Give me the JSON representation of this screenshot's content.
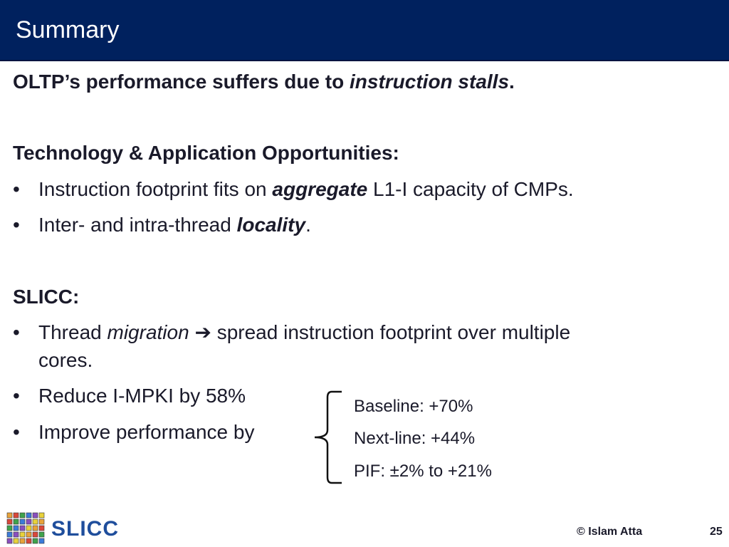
{
  "header": {
    "title": "Summary"
  },
  "intro": {
    "text_before": "OLTP’s performance suffers due to ",
    "emphasis": "instruction stalls",
    "text_after": "."
  },
  "tech_section": {
    "heading": "Technology & Application Opportunities:",
    "bullets": [
      {
        "before": "Instruction footprint fits on ",
        "emphasis": "aggregate",
        "after": " L1-I capacity of CMPs."
      },
      {
        "before": "Inter- and intra-thread ",
        "emphasis": "locality",
        "after": "."
      }
    ]
  },
  "slicc_section": {
    "heading": "SLICC:",
    "bullet1": {
      "before": "Thread ",
      "emphasis": "migration",
      "arrow": " ➔ ",
      "after_line1": "spread instruction footprint over multiple",
      "line2": "cores."
    },
    "bullet2": "Reduce I-MPKI by 58%",
    "bullet3": "Improve performance by",
    "results": [
      "Baseline: +70%",
      "Next-line: +44%",
      "PIF: ±2% to +21%"
    ]
  },
  "footer": {
    "logo_text": "SLICC",
    "copyright": "© Islam Atta",
    "page_number": "25"
  },
  "colors": {
    "header_bg": "#00215e",
    "logo_text": "#1f4e9c"
  },
  "icons": {
    "logo": "slicc-grid-logo-icon",
    "brace": "curly-brace-icon",
    "bullet": "bullet-dot-icon"
  }
}
